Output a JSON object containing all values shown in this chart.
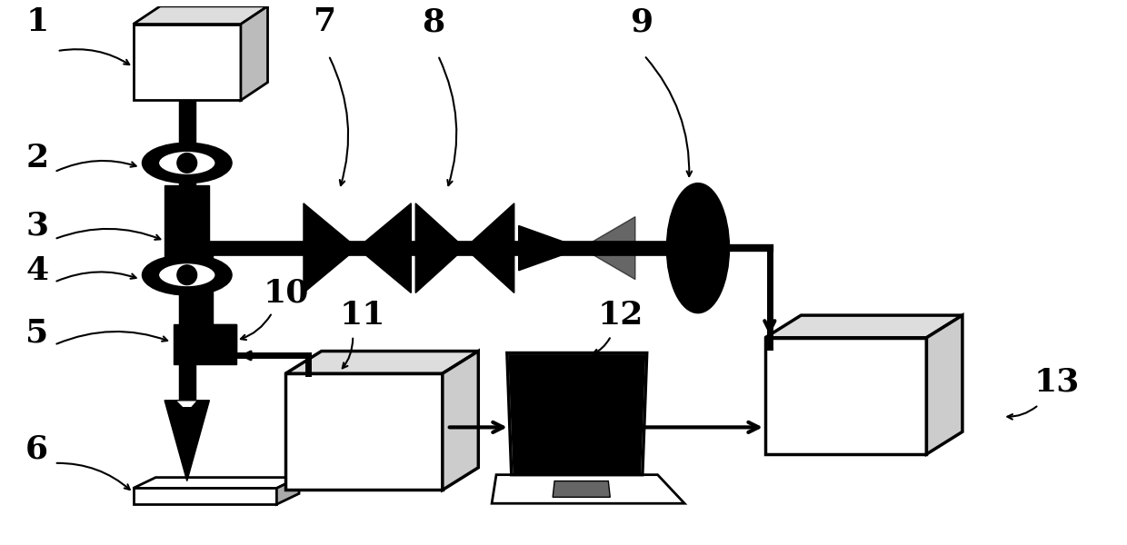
{
  "bg_color": "#ffffff",
  "line_color": "#000000",
  "figsize": [
    12.4,
    6.0
  ],
  "dpi": 100
}
